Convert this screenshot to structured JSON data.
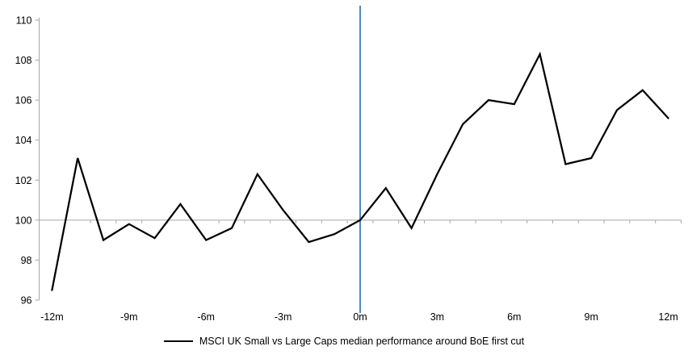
{
  "chart_data": {
    "type": "line",
    "x": [
      -12,
      -11,
      -10,
      -9,
      -8,
      -7,
      -6,
      -5,
      -4,
      -3,
      -2,
      -1,
      0,
      1,
      2,
      3,
      4,
      5,
      6,
      7,
      8,
      9,
      10,
      11,
      12
    ],
    "series": [
      {
        "name": "MSCI UK Small vs Large Caps median performance around BoE first cut",
        "color": "#000000",
        "values": [
          96.5,
          103.1,
          99.0,
          99.8,
          99.1,
          100.8,
          99.0,
          99.6,
          102.3,
          100.5,
          98.9,
          99.3,
          100.0,
          101.6,
          99.6,
          102.3,
          104.8,
          106.0,
          105.8,
          108.3,
          102.8,
          103.1,
          105.5,
          106.5,
          105.1
        ]
      }
    ],
    "x_ticks": [
      -12,
      -9,
      -6,
      -3,
      0,
      3,
      6,
      9,
      12
    ],
    "x_tick_labels": [
      "-12m",
      "-9m",
      "-6m",
      "-3m",
      "0m",
      "3m",
      "6m",
      "9m",
      "12m"
    ],
    "y_ticks": [
      110,
      108,
      106,
      104,
      102,
      100,
      98,
      96
    ],
    "xlim": [
      -12.5,
      12.5
    ],
    "ylim": [
      96,
      110
    ],
    "gridline_y": 100,
    "event_line_x": 0,
    "legend_position": "bottom-center",
    "grid": "off",
    "colors": {
      "series_line": "#000000",
      "event_line": "#4f86c6",
      "axis": "#a6a6a6",
      "gridline": "#a6a6a6",
      "tick_text": "#000000"
    }
  }
}
